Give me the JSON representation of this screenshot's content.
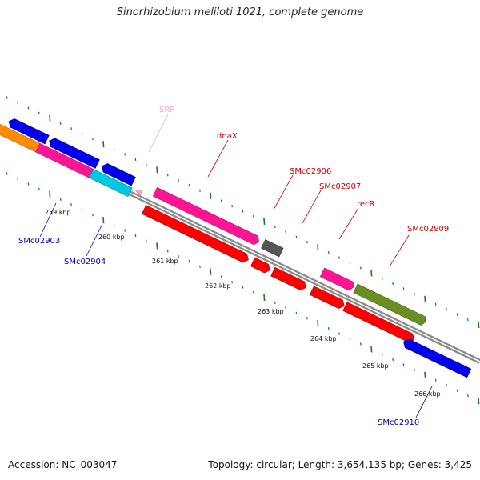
{
  "title": "Sinorhizobium meliloti 1021, complete genome",
  "footer": {
    "accession": "Accession: NC_003047",
    "summary": "Topology: circular; Length: 3,654,135 bp; Genes: 3,425"
  },
  "scale_labels": [
    "259 kbp",
    "260 kbp",
    "261 kbp",
    "262 kbp",
    "263 kbp",
    "264 kbp",
    "265 kbp",
    "266 kbp"
  ],
  "genes": [
    {
      "id": "SRP",
      "label": "SRP",
      "color": "#f4a6d0"
    },
    {
      "id": "dnaX",
      "label": "dnaX",
      "color": "#cc0000"
    },
    {
      "id": "SMc02906",
      "label": "SMc02906",
      "color": "#cc0000"
    },
    {
      "id": "SMc02907",
      "label": "SMc02907",
      "color": "#cc0000"
    },
    {
      "id": "recR",
      "label": "recR",
      "color": "#cc0000"
    },
    {
      "id": "SMc02909",
      "label": "SMc02909",
      "color": "#cc0000"
    },
    {
      "id": "SMc02903",
      "label": "SMc02903",
      "color": "#0000aa"
    },
    {
      "id": "SMc02904",
      "label": "SMc02904",
      "color": "#0000aa"
    },
    {
      "id": "SMc02910",
      "label": "SMc02910",
      "color": "#0000aa"
    }
  ],
  "colors": {
    "forward_cds": "#ff0000",
    "reverse_cds": "#0000ee",
    "rna": "#ff2aa8",
    "pseudo": "#555555",
    "olive": "#6b8e23",
    "orange": "#ff8c00",
    "cyan": "#00c8e0",
    "tick": "#1a7a1a",
    "backbone": "#888888"
  }
}
